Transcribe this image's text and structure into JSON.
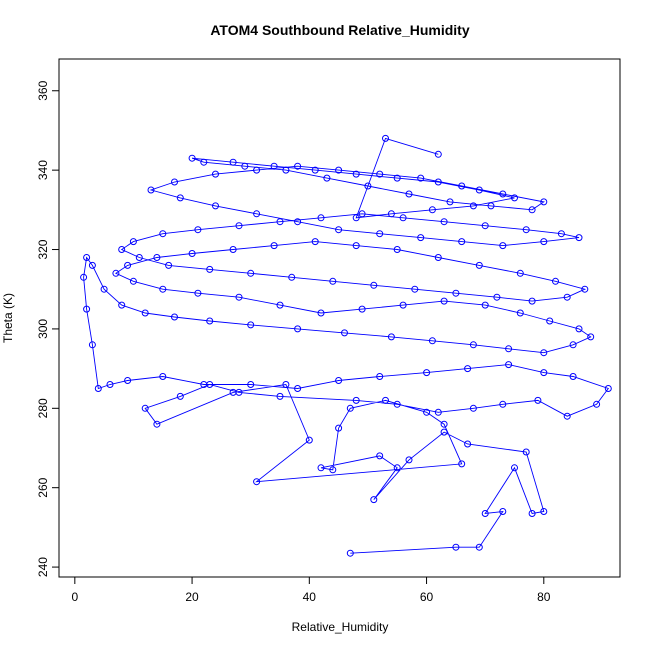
{
  "chart_data": {
    "type": "line",
    "title": "ATOM4 Southbound Relative_Humidity",
    "xlabel": "Relative_Humidity",
    "ylabel": "Theta (K)",
    "xlim": [
      -2.7,
      93
    ],
    "ylim": [
      237.5,
      368
    ],
    "x_ticks": [
      0,
      20,
      40,
      60,
      80
    ],
    "y_ticks": [
      240,
      260,
      280,
      300,
      320,
      340,
      360
    ],
    "grid": false,
    "legend": "none",
    "series_color": "#0000ff",
    "marker": "open-circle",
    "series": [
      {
        "x": [
          47,
          65,
          69,
          73,
          70,
          75,
          78,
          80,
          77,
          67,
          63,
          57,
          51,
          55,
          52,
          42,
          44,
          45,
          47,
          53,
          60,
          63,
          66,
          31,
          40,
          36,
          27,
          14,
          12,
          18,
          23,
          28,
          35,
          48,
          55,
          62,
          68,
          73,
          79,
          84,
          89,
          91,
          85,
          80,
          74,
          67,
          60,
          52,
          45,
          38,
          30,
          22,
          15,
          9,
          6,
          4,
          3,
          2,
          1.5,
          2,
          3,
          5,
          8,
          12,
          17,
          23,
          30,
          38,
          46,
          54,
          61,
          68,
          74,
          80,
          85,
          88,
          86,
          81,
          76,
          70,
          63,
          56,
          49,
          42,
          35,
          28,
          21,
          15,
          10,
          7,
          9,
          14,
          20,
          27,
          34,
          41,
          48,
          55,
          62,
          69,
          76,
          82,
          87,
          84,
          78,
          72,
          65,
          58,
          51,
          44,
          37,
          30,
          23,
          16,
          11,
          8,
          10,
          15,
          21,
          28,
          35,
          42,
          49,
          56,
          63,
          70,
          77,
          83,
          86,
          80,
          73,
          66,
          59,
          52,
          45,
          38,
          31,
          24,
          18,
          13,
          17,
          24,
          31,
          38,
          45,
          52,
          59,
          66,
          73,
          80,
          78,
          71,
          64,
          57,
          50,
          43,
          36,
          29,
          22,
          20,
          27,
          34,
          41,
          48,
          55,
          62,
          69,
          75,
          68,
          61,
          54,
          48,
          53,
          62
        ],
        "y": [
          243.5,
          245,
          245,
          254,
          253.5,
          265,
          253.5,
          254,
          269,
          271,
          274,
          267,
          257,
          265,
          268,
          265,
          264.5,
          275,
          280,
          282,
          279,
          276,
          266,
          261.5,
          272,
          286,
          284,
          276,
          280,
          283,
          286,
          284,
          283,
          282,
          281,
          279,
          280,
          281,
          282,
          278,
          281,
          285,
          288,
          289,
          291,
          290,
          289,
          288,
          287,
          285,
          286,
          286,
          288,
          287,
          286,
          285,
          296,
          305,
          313,
          318,
          316,
          310,
          306,
          304,
          303,
          302,
          301,
          300,
          299,
          298,
          297,
          296,
          295,
          294,
          296,
          298,
          300,
          302,
          304,
          306,
          307,
          306,
          305,
          304,
          306,
          308,
          309,
          310,
          312,
          314,
          316,
          318,
          319,
          320,
          321,
          322,
          321,
          320,
          318,
          316,
          314,
          312,
          310,
          308,
          307,
          308,
          309,
          310,
          311,
          312,
          313,
          314,
          315,
          316,
          318,
          320,
          322,
          324,
          325,
          326,
          327,
          328,
          329,
          328,
          327,
          326,
          325,
          324,
          323,
          322,
          321,
          322,
          323,
          324,
          325,
          327,
          329,
          331,
          333,
          335,
          337,
          339,
          340,
          341,
          340,
          339,
          338,
          336,
          334,
          332,
          330,
          331,
          332,
          334,
          336,
          338,
          340,
          341,
          342,
          343,
          342,
          341,
          340,
          339,
          338,
          337,
          335,
          333,
          331,
          330,
          329,
          328,
          348,
          344
        ]
      }
    ]
  }
}
